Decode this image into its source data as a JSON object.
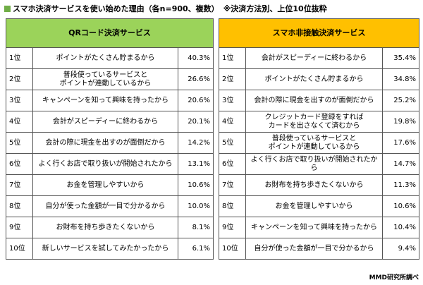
{
  "header": {
    "title": "スマホ決済サービスを使い始めた理由（各n=900、複数）",
    "note": "※決済方法別、上位10位抜粋"
  },
  "tables": [
    {
      "heading": "QRコード決済サービス",
      "rows": [
        [
          "1位",
          "ポイントがたくさん貯まるから",
          "40.3%"
        ],
        [
          "2位",
          "普段使っているサービスと\nポイントが連動しているから",
          "26.6%"
        ],
        [
          "3位",
          "キャンペーンを知って興味を持ったから",
          "20.6%"
        ],
        [
          "4位",
          "会計がスピーディーに終わるから",
          "20.1%"
        ],
        [
          "5位",
          "会計の際に現金を出すのが面倒だから",
          "14.2%"
        ],
        [
          "6位",
          "よく行くお店で取り扱いが開始されたから",
          "13.1%"
        ],
        [
          "7位",
          "お金を管理しやすいから",
          "10.6%"
        ],
        [
          "8位",
          "自分が使った金額が一目で分かるから",
          "10.0%"
        ],
        [
          "9位",
          "お財布を持ち歩きたくないから",
          "8.1%"
        ],
        [
          "10位",
          "新しいサービスを試してみたかったから",
          "6.1%"
        ]
      ]
    },
    {
      "heading": "スマホ非接触決済サービス",
      "rows": [
        [
          "1位",
          "会計がスピーディーに終わるから",
          "35.4%"
        ],
        [
          "2位",
          "ポイントがたくさん貯まるから",
          "34.8%"
        ],
        [
          "3位",
          "会計の際に現金を出すのが面倒だから",
          "25.2%"
        ],
        [
          "4位",
          "クレジットカード登録をすれば\nカードを出さなくて済むから",
          "19.8%"
        ],
        [
          "5位",
          "普段使っているサービスと\nポイントが連動しているから",
          "17.6%"
        ],
        [
          "6位",
          "よく行くお店で取り扱いが開始されたから",
          "14.7%"
        ],
        [
          "7位",
          "お財布を持ち歩きたくないから",
          "11.3%"
        ],
        [
          "8位",
          "お金を管理しやすいから",
          "10.6%"
        ],
        [
          "9位",
          "キャンペーンを知って興味を持ったから",
          "10.4%"
        ],
        [
          "10位",
          "自分が使った金額が一目で分かるから",
          "9.4%"
        ]
      ]
    }
  ],
  "footer": {
    "source": "MMD研究所調べ"
  }
}
